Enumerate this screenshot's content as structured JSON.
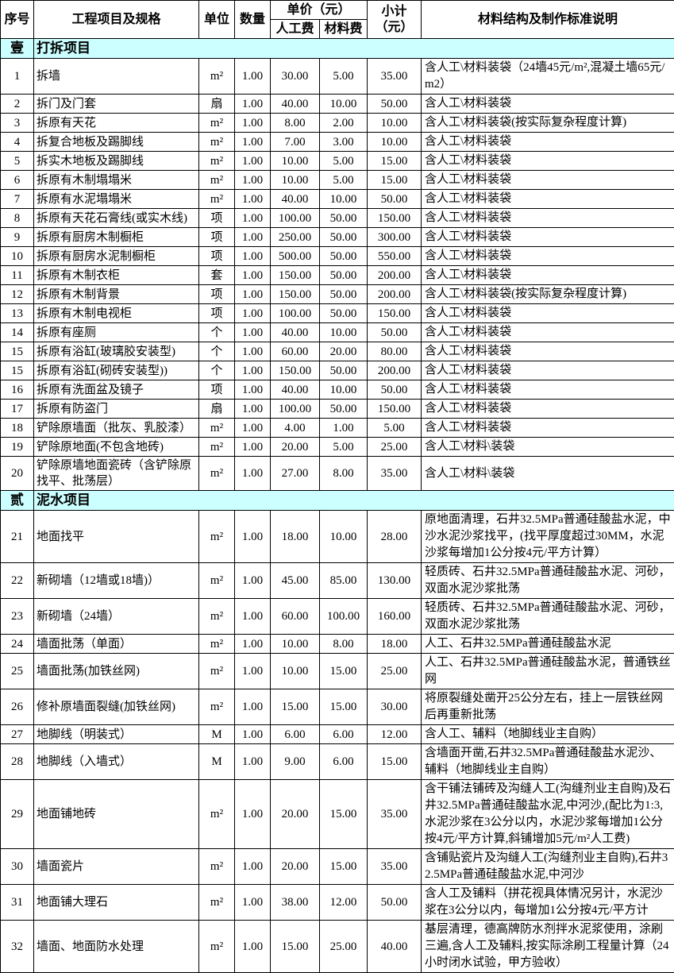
{
  "table": {
    "header": {
      "no": "序号",
      "item": "工程项目及规格",
      "unit": "单位",
      "qty": "数量",
      "unit_price": "单价（元）",
      "labor": "人工费",
      "material": "材料费",
      "subtotal": "小计（元）",
      "desc": "材料结构及制作标准说明"
    },
    "section_bg_color": "#ccffff",
    "border_color": "#000000"
  },
  "sections": [
    {
      "id": "壹",
      "title": "打拆项目",
      "rows": [
        {
          "no": "1",
          "item": "拆墙",
          "unit": "m²",
          "qty": "1.00",
          "labor": "30.00",
          "material": "5.00",
          "subtotal": "35.00",
          "desc": "含人工\\材料装袋（24墙45元/m²,混凝土墙65元/m2）"
        },
        {
          "no": "2",
          "item": "拆门及门套",
          "unit": "扇",
          "qty": "1.00",
          "labor": "40.00",
          "material": "10.00",
          "subtotal": "50.00",
          "desc": "含人工\\材料装袋"
        },
        {
          "no": "3",
          "item": "拆原有天花",
          "unit": "m²",
          "qty": "1.00",
          "labor": "8.00",
          "material": "2.00",
          "subtotal": "10.00",
          "desc": "含人工\\材料装袋(按实际复杂程度计算)"
        },
        {
          "no": "4",
          "item": "拆复合地板及踢脚线",
          "unit": "m²",
          "qty": "1.00",
          "labor": "7.00",
          "material": "3.00",
          "subtotal": "10.00",
          "desc": "含人工\\材料装袋"
        },
        {
          "no": "5",
          "item": "拆实木地板及踢脚线",
          "unit": "m²",
          "qty": "1.00",
          "labor": "10.00",
          "material": "5.00",
          "subtotal": "15.00",
          "desc": "含人工\\材料装袋"
        },
        {
          "no": "6",
          "item": "拆原有木制塌塌米",
          "unit": "m²",
          "qty": "1.00",
          "labor": "10.00",
          "material": "5.00",
          "subtotal": "15.00",
          "desc": "含人工\\材料装袋"
        },
        {
          "no": "7",
          "item": "拆原有水泥塌塌米",
          "unit": "m²",
          "qty": "1.00",
          "labor": "40.00",
          "material": "10.00",
          "subtotal": "50.00",
          "desc": "含人工\\材料装袋"
        },
        {
          "no": "8",
          "item": "拆原有天花石膏线(或实木线)",
          "unit": "项",
          "qty": "1.00",
          "labor": "100.00",
          "material": "50.00",
          "subtotal": "150.00",
          "desc": "含人工\\材料装袋"
        },
        {
          "no": "9",
          "item": "拆原有厨房木制橱柜",
          "unit": "项",
          "qty": "1.00",
          "labor": "250.00",
          "material": "50.00",
          "subtotal": "300.00",
          "desc": "含人工\\材料装袋"
        },
        {
          "no": "10",
          "item": "拆原有厨房水泥制橱柜",
          "unit": "项",
          "qty": "1.00",
          "labor": "500.00",
          "material": "50.00",
          "subtotal": "550.00",
          "desc": "含人工\\材料装袋"
        },
        {
          "no": "11",
          "item": "拆原有木制衣柜",
          "unit": "套",
          "qty": "1.00",
          "labor": "150.00",
          "material": "50.00",
          "subtotal": "200.00",
          "desc": "含人工\\材料装袋"
        },
        {
          "no": "12",
          "item": "拆原有木制背景",
          "unit": "项",
          "qty": "1.00",
          "labor": "150.00",
          "material": "50.00",
          "subtotal": "200.00",
          "desc": "含人工\\材料装袋(按实际复杂程度计算)"
        },
        {
          "no": "13",
          "item": "拆原有木制电视柜",
          "unit": "项",
          "qty": "1.00",
          "labor": "100.00",
          "material": "50.00",
          "subtotal": "150.00",
          "desc": "含人工\\材料装袋"
        },
        {
          "no": "14",
          "item": "拆原有座厕",
          "unit": "个",
          "qty": "1.00",
          "labor": "40.00",
          "material": "10.00",
          "subtotal": "50.00",
          "desc": "含人工\\材料装袋"
        },
        {
          "no": "15",
          "item": "拆原有浴缸(玻璃胶安装型)",
          "unit": "个",
          "qty": "1.00",
          "labor": "60.00",
          "material": "20.00",
          "subtotal": "80.00",
          "desc": "含人工\\材料装袋"
        },
        {
          "no": "15",
          "item": "拆原有浴缸(砌砖安装型))",
          "unit": "个",
          "qty": "1.00",
          "labor": "150.00",
          "material": "50.00",
          "subtotal": "200.00",
          "desc": "含人工\\材料装袋"
        },
        {
          "no": "16",
          "item": "拆原有洗面盆及镜子",
          "unit": "项",
          "qty": "1.00",
          "labor": "40.00",
          "material": "10.00",
          "subtotal": "50.00",
          "desc": "含人工\\材料装袋"
        },
        {
          "no": "17",
          "item": "拆原有防盗门",
          "unit": "扇",
          "qty": "1.00",
          "labor": "100.00",
          "material": "50.00",
          "subtotal": "150.00",
          "desc": "含人工\\材料装袋"
        },
        {
          "no": "18",
          "item": "铲除原墙面（批灰、乳胶漆）",
          "unit": "m²",
          "qty": "1.00",
          "labor": "4.00",
          "material": "1.00",
          "subtotal": "5.00",
          "desc": "含人工\\材料装袋"
        },
        {
          "no": "19",
          "item": "铲除原地面(不包含地砖)",
          "unit": "m²",
          "qty": "1.00",
          "labor": "20.00",
          "material": "5.00",
          "subtotal": "25.00",
          "desc": "含人工\\材料\\装袋"
        },
        {
          "no": "20",
          "item": "铲除原墙地面瓷砖（含铲除原找平、批荡层）",
          "unit": "m²",
          "qty": "1.00",
          "labor": "27.00",
          "material": "8.00",
          "subtotal": "35.00",
          "desc": "含人工\\材料\\装袋"
        }
      ]
    },
    {
      "id": "贰",
      "title": "泥水项目",
      "rows": [
        {
          "no": "21",
          "item": "地面找平",
          "unit": "m²",
          "qty": "1.00",
          "labor": "18.00",
          "material": "10.00",
          "subtotal": "28.00",
          "desc": "原地面清理，石井32.5MPa普通硅酸盐水泥，中沙水泥沙浆找平，(找平厚度超过30MM，水泥沙浆每增加1公分按4元/平方计算）"
        },
        {
          "no": "22",
          "item": "新砌墙（12墙或18墙)）",
          "unit": "m²",
          "qty": "1.00",
          "labor": "45.00",
          "material": "85.00",
          "subtotal": "130.00",
          "desc": "轻质砖、石井32.5MPa普通硅酸盐水泥、河砂，双面水泥沙浆批荡"
        },
        {
          "no": "23",
          "item": "新砌墙（24墙）",
          "unit": "m²",
          "qty": "1.00",
          "labor": "60.00",
          "material": "100.00",
          "subtotal": "160.00",
          "desc": "轻质砖、石井32.5MPa普通硅酸盐水泥、河砂，双面水泥沙浆批荡"
        },
        {
          "no": "24",
          "item": "墙面批荡（单面）",
          "unit": "m²",
          "qty": "1.00",
          "labor": "10.00",
          "material": "8.00",
          "subtotal": "18.00",
          "desc": "人工、石井32.5MPa普通硅酸盐水泥"
        },
        {
          "no": "25",
          "item": "墙面批荡(加铁丝网)",
          "unit": "m²",
          "qty": "1.00",
          "labor": "10.00",
          "material": "15.00",
          "subtotal": "25.00",
          "desc": "人工、石井32.5MPa普通硅酸盐水泥，普通铁丝网"
        },
        {
          "no": "26",
          "item": "修补原墙面裂缝(加铁丝网)",
          "unit": "m²",
          "qty": "1.00",
          "labor": "15.00",
          "material": "15.00",
          "subtotal": "30.00",
          "desc": "将原裂缝处凿开25公分左右，挂上一层铁丝网后再重新批荡"
        },
        {
          "no": "27",
          "item": "地脚线（明装式）",
          "unit": "M",
          "qty": "1.00",
          "labor": "6.00",
          "material": "6.00",
          "subtotal": "12.00",
          "desc": "含人工、辅料（地脚线业主自购）"
        },
        {
          "no": "28",
          "item": "地脚线（入墙式）",
          "unit": "M",
          "qty": "1.00",
          "labor": "9.00",
          "material": "6.00",
          "subtotal": "15.00",
          "desc": "含墙面开凿,石井32.5MPa普通硅酸盐水泥沙、辅料（地脚线业主自购）"
        },
        {
          "no": "29",
          "item": "地面铺地砖",
          "unit": "m²",
          "qty": "1.00",
          "labor": "20.00",
          "material": "15.00",
          "subtotal": "35.00",
          "desc": "含干铺法铺砖及沟缝人工(沟缝剂业主自购)及石井32.5MPa普通硅酸盐水泥,中河沙,(配比为1:3,水泥沙浆在3公分以内，水泥沙浆每增加1公分按4元/平方计算,斜铺增加5元/m²人工费)"
        },
        {
          "no": "30",
          "item": "墙面瓷片",
          "unit": "m²",
          "qty": "1.00",
          "labor": "20.00",
          "material": "15.00",
          "subtotal": "35.00",
          "desc": "含铺贴瓷片及沟缝人工(沟缝剂业主自购),石井32.5MPa普通硅酸盐水泥,中河沙"
        },
        {
          "no": "31",
          "item": "地面铺大理石",
          "unit": "m²",
          "qty": "1.00",
          "labor": "38.00",
          "material": "12.00",
          "subtotal": "50.00",
          "desc": "含人工及铺料（拼花视具体情况另计，水泥沙浆在3公分以内，每增加1公分按4元/平方计"
        },
        {
          "no": "32",
          "item": "墙面、地面防水处理",
          "unit": "m²",
          "qty": "1.00",
          "labor": "15.00",
          "material": "25.00",
          "subtotal": "40.00",
          "desc": "基层清理，德高牌防水剂拌水泥浆使用，涂刷三遍,含人工及辅料,按实际涂刷工程量计算（24小时闭水试验，甲方验收）"
        }
      ]
    }
  ]
}
